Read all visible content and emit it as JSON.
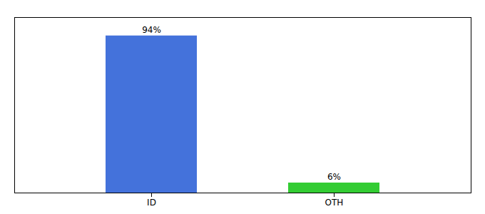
{
  "chart_data": {
    "type": "bar",
    "categories": [
      "ID",
      "OTH"
    ],
    "values": [
      94,
      6
    ],
    "value_labels": [
      "94%",
      "6%"
    ],
    "colors": [
      "#4472db",
      "#33cc33"
    ],
    "ylim": [
      0,
      105
    ],
    "data_labels": true,
    "tick_labels": "x"
  }
}
